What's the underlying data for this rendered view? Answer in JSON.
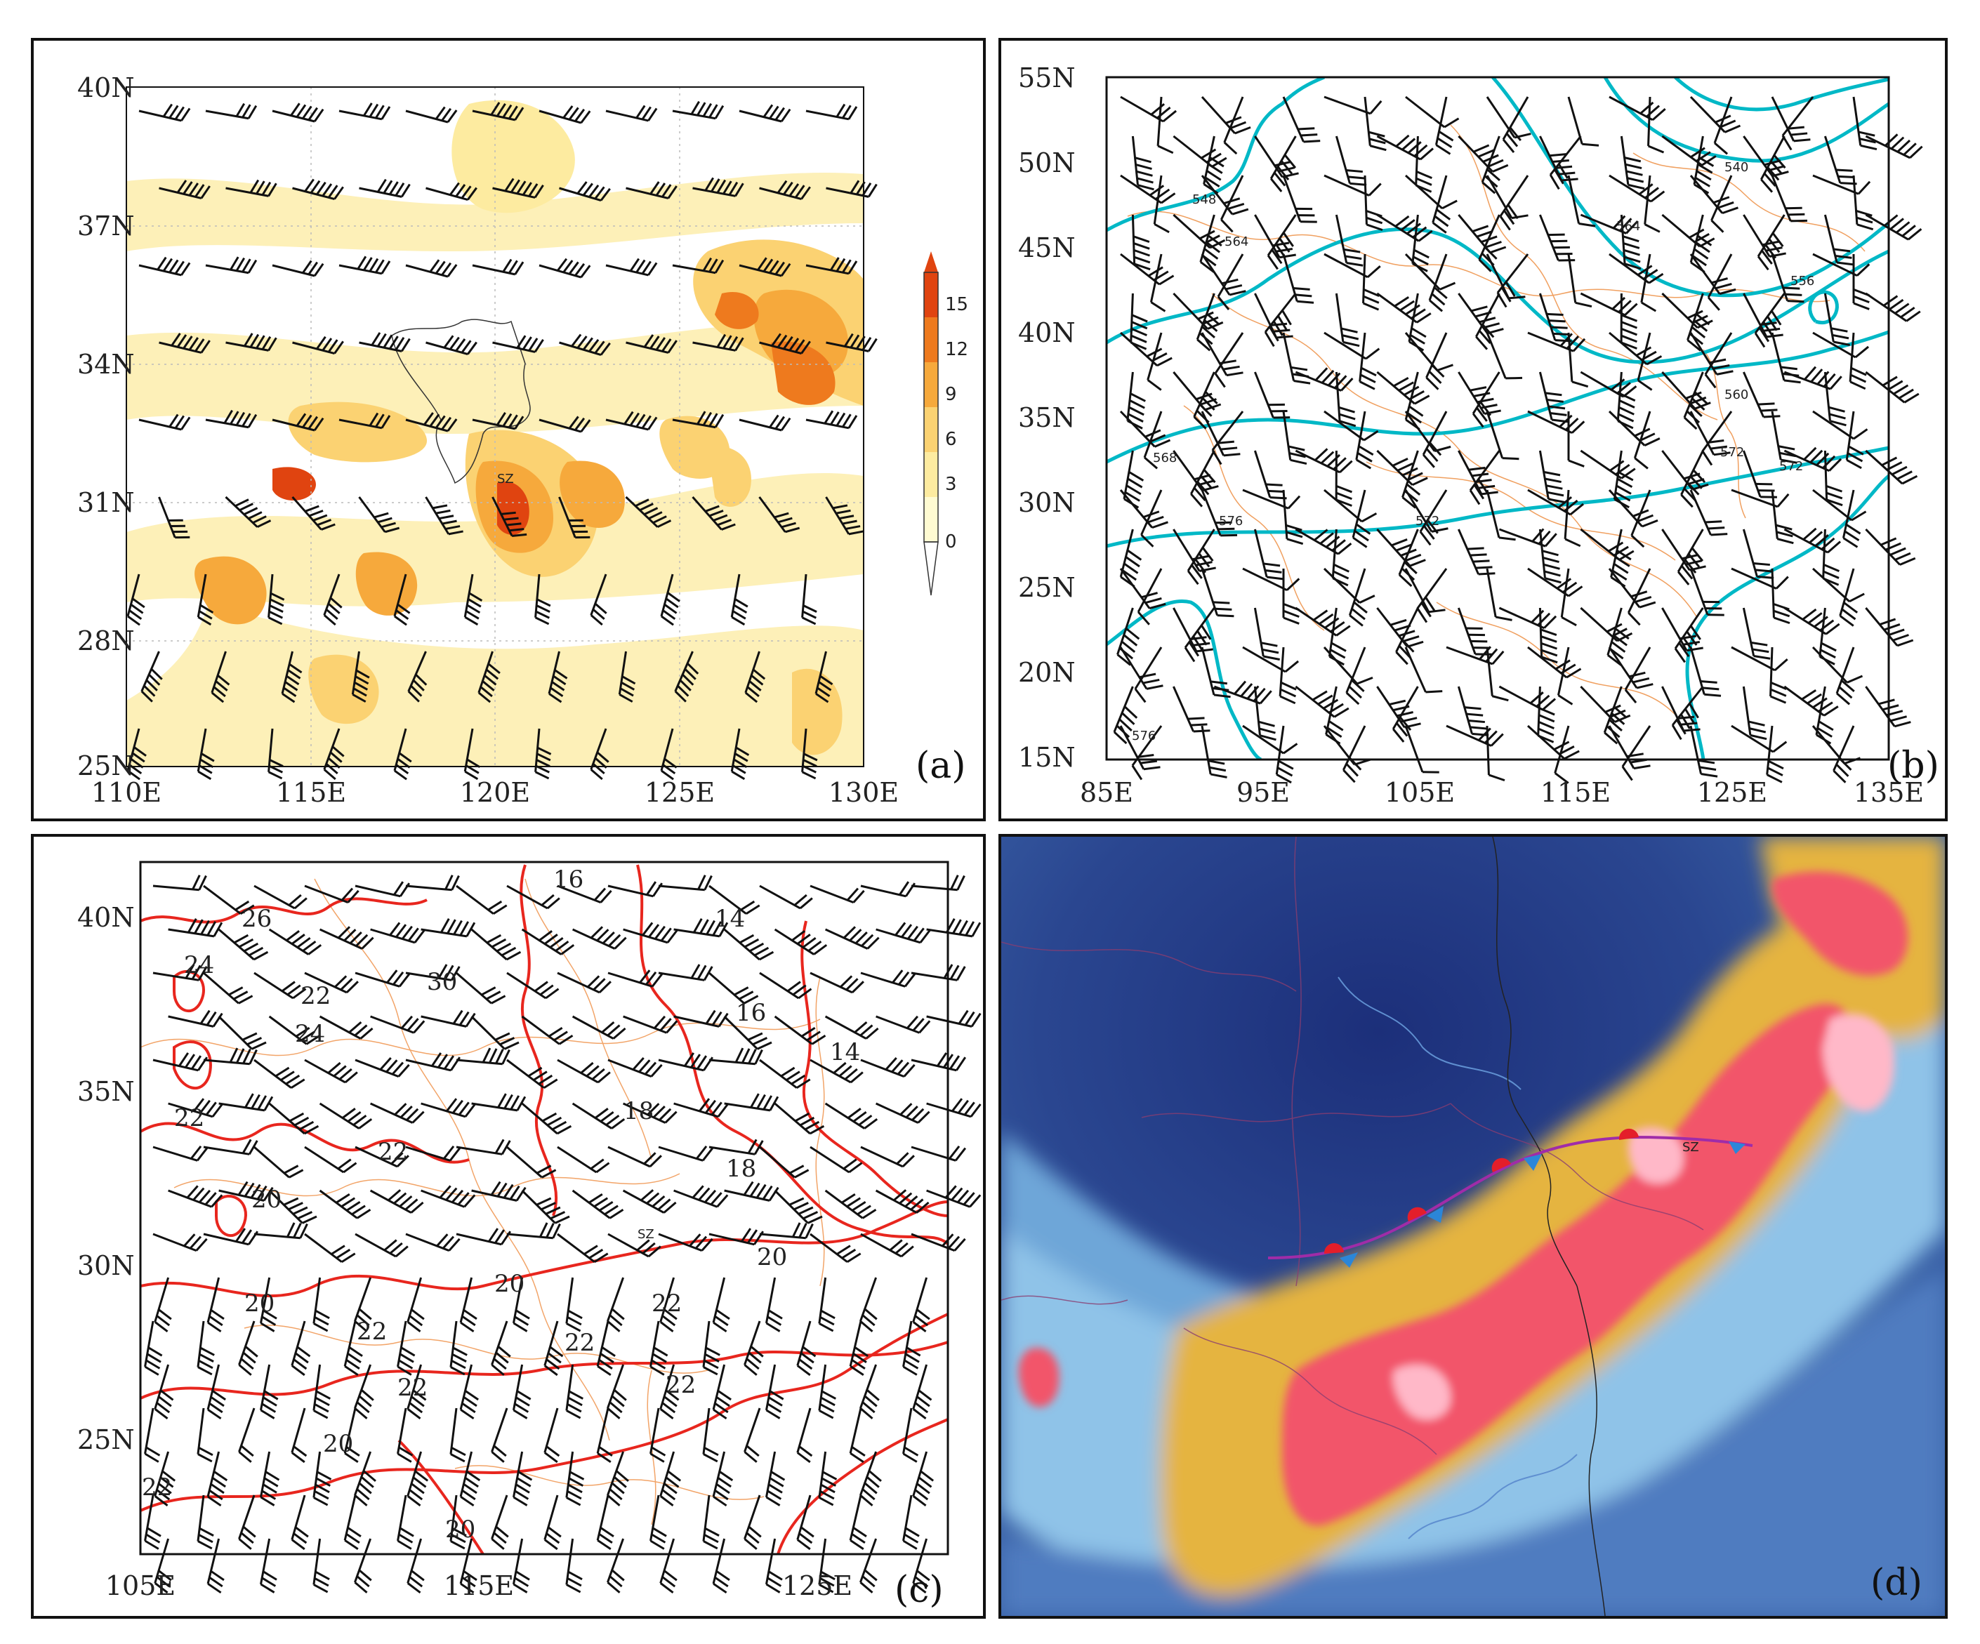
{
  "figure": {
    "panels": [
      {
        "id": "a",
        "label": "(a)",
        "lat_ticks": [
          "40N",
          "37N",
          "34N",
          "31N",
          "28N",
          "25N"
        ],
        "lon_ticks": [
          "110E",
          "115E",
          "120E",
          "125E",
          "130E"
        ],
        "colorbar": {
          "ticks": [
            "15",
            "12",
            "9",
            "6",
            "3",
            "0"
          ],
          "colors": [
            "#fffbd2",
            "#fdeba0",
            "#fbd272",
            "#f6a93c",
            "#ee7a1e",
            "#e04410"
          ]
        },
        "station": "SZ"
      },
      {
        "id": "b",
        "label": "(b)",
        "lat_ticks": [
          "55N",
          "50N",
          "45N",
          "40N",
          "35N",
          "30N",
          "25N",
          "20N",
          "15N"
        ],
        "lon_ticks": [
          "85E",
          "95E",
          "105E",
          "115E",
          "125E",
          "135E"
        ],
        "contour_labels": [
          "548",
          "540",
          "564",
          "556",
          "560",
          "568",
          "564",
          "572",
          "572",
          "576",
          "572",
          "576"
        ],
        "contour_color": "#00b8c6"
      },
      {
        "id": "c",
        "label": "(c)",
        "lat_ticks": [
          "40N",
          "35N",
          "30N",
          "25N"
        ],
        "lon_ticks": [
          "105E",
          "115E",
          "125E"
        ],
        "contour_labels": [
          "16",
          "26",
          "14",
          "24",
          "22",
          "30",
          "24",
          "16",
          "14",
          "22",
          "22",
          "18",
          "18",
          "20",
          "SZ",
          "20",
          "20",
          "20",
          "22",
          "22",
          "22",
          "22",
          "22",
          "20",
          "22",
          "20"
        ],
        "contour_color": "#e8261e"
      },
      {
        "id": "d",
        "label": "(d)",
        "station": "SZ"
      }
    ]
  }
}
